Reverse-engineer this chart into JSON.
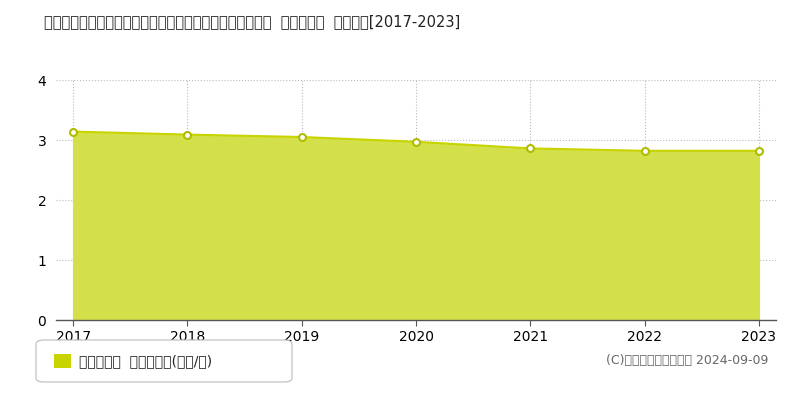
{
  "title": "宮崎県西臼杵郡五ケ瀬町大字三ケ所字赤谷１０７２１番２  基準地価格  地価推移[2017-2023]",
  "years": [
    2017,
    2018,
    2019,
    2020,
    2021,
    2022,
    2023
  ],
  "values": [
    3.14,
    3.09,
    3.05,
    2.97,
    2.86,
    2.82,
    2.82
  ],
  "line_color": "#c8d400",
  "fill_color": "#d4e04a",
  "fill_alpha": 1.0,
  "marker_color": "#ffffff",
  "marker_edge_color": "#b0bc00",
  "ylim": [
    0,
    4
  ],
  "yticks": [
    0,
    1,
    2,
    3,
    4
  ],
  "grid_color": "#bbbbbb",
  "bg_color": "#ffffff",
  "legend_text": "基準地価格  平均坪単価(万円/坪)",
  "legend_box_color": "#c8d400",
  "copyright_text": "(C)土地価格ドットコム 2024-09-09",
  "title_fontsize": 10.5,
  "axis_fontsize": 10,
  "legend_fontsize": 10,
  "copyright_fontsize": 9
}
